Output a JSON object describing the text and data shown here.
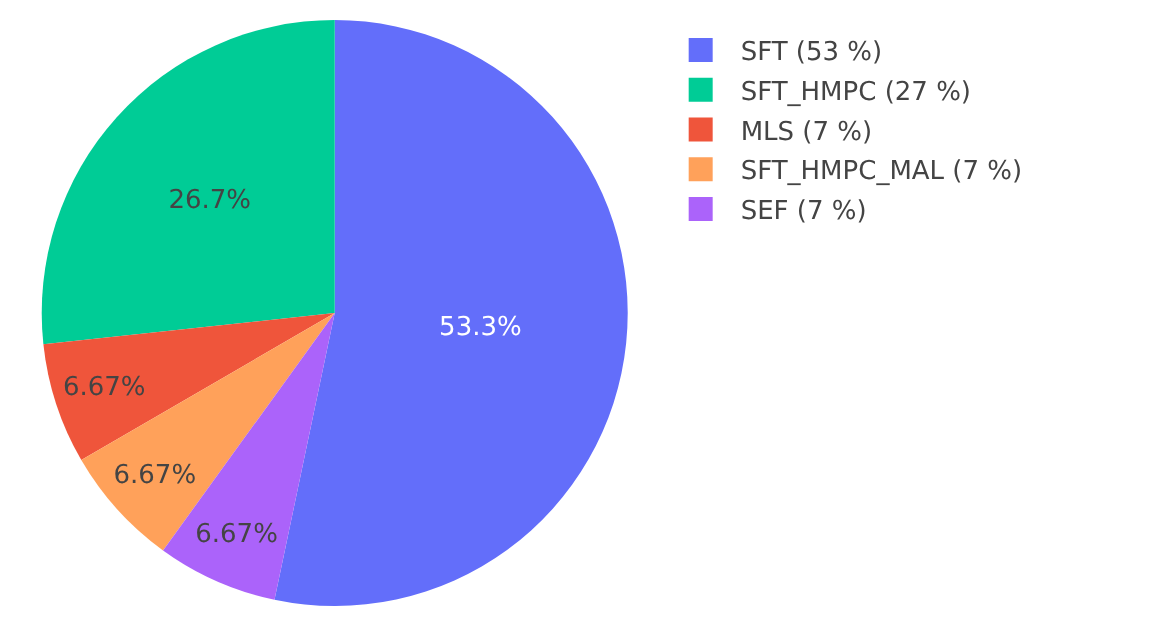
{
  "chart_data": {
    "type": "pie",
    "categories": [
      "SFT (53 %)",
      "SFT_HMPC (27 %)",
      "MLS (7 %)",
      "SFT_HMPC_MAL (7 %)",
      "SEF (7 %)"
    ],
    "values": [
      53.3,
      26.7,
      6.67,
      6.67,
      6.67
    ],
    "colors": [
      "#636efa",
      "#00cc96",
      "#ef553b",
      "#ffa15a",
      "#ab63fa"
    ],
    "value_labels": [
      "53.3%",
      "26.7%",
      "6.67%",
      "6.67%",
      "6.67%"
    ],
    "legend": "top right"
  }
}
